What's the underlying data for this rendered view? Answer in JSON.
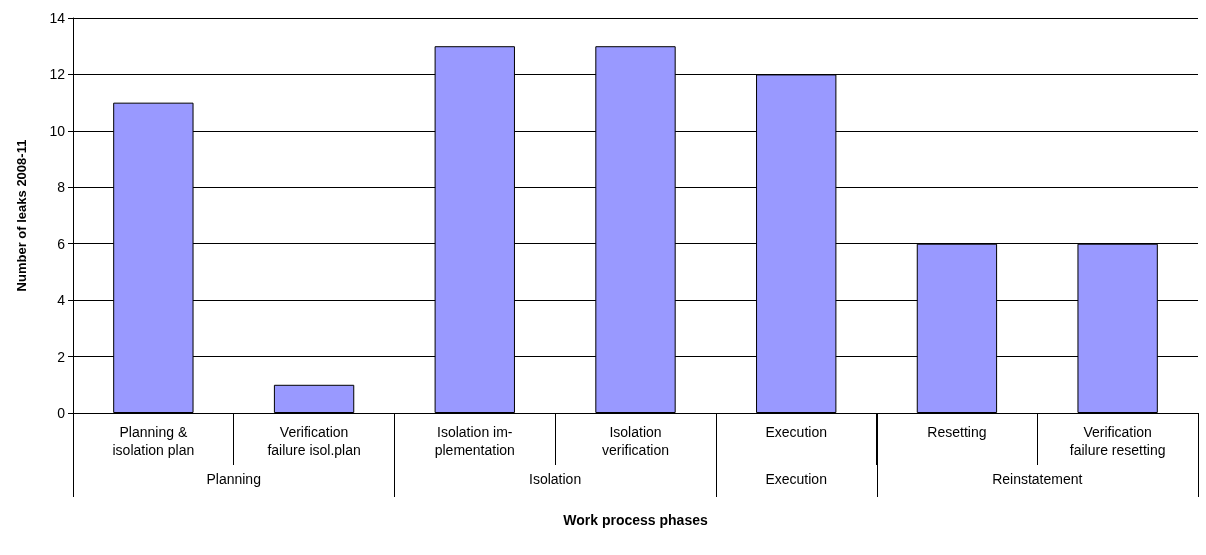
{
  "chart_data": {
    "type": "bar",
    "xlabel": "Work process phases",
    "ylabel": "Number of leaks 2008-11",
    "categories": [
      "Planning &\nisolation plan",
      "Verification\nfailure isol.plan",
      "Isolation im-\nplementation",
      "Isolation\nverification",
      "Execution",
      "Resetting",
      "Verification\nfailure resetting"
    ],
    "values": [
      11,
      1,
      13,
      13,
      12,
      6,
      6
    ],
    "color": "#9999ff",
    "ylim": [
      0,
      14
    ],
    "yticks": [
      0,
      2,
      4,
      6,
      8,
      10,
      12,
      14
    ],
    "grid": "y",
    "annotations": [
      "Planning",
      "Isolation",
      "Execution",
      "Reinstatement"
    ]
  }
}
